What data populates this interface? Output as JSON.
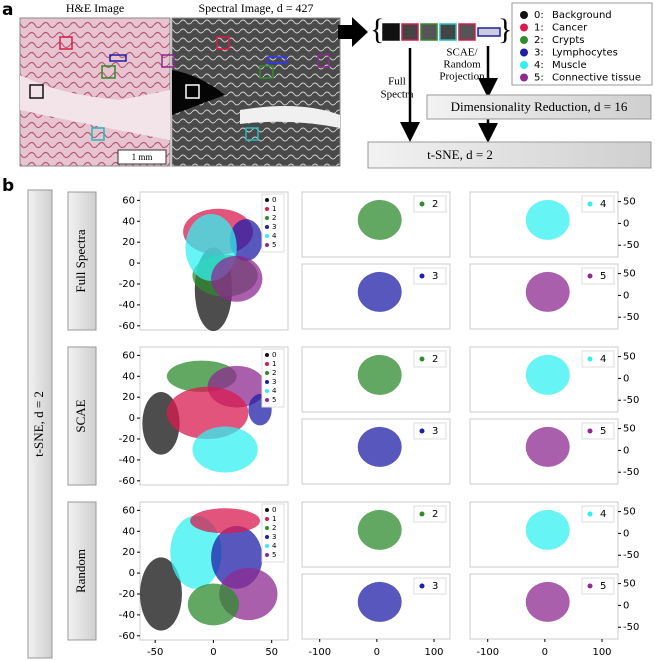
{
  "panel_a": {
    "label": "a",
    "he_title": "H&E Image",
    "spectral_title": "Spectral Image, d = 427",
    "scale_bar": "1 mm",
    "legend": [
      {
        "key": "0:",
        "label": "Background",
        "color": "#111111"
      },
      {
        "key": "1:",
        "label": "Cancer",
        "color": "#d81b4f"
      },
      {
        "key": "2:",
        "label": "Crypts",
        "color": "#2e8b2e"
      },
      {
        "key": "3:",
        "label": "Lymphocytes",
        "color": "#1f1fa8"
      },
      {
        "key": "4:",
        "label": "Muscle",
        "color": "#33f0f0"
      },
      {
        "key": "5:",
        "label": "Connective tissue",
        "color": "#8e2a92"
      }
    ],
    "scae_label": [
      "SCAE/",
      "Random",
      "Projection"
    ],
    "full_spectra_label": [
      "Full",
      "Spectra"
    ],
    "dim_reduction": "Dimensionality Reduction, d = 16",
    "tsne": "t-SNE, d = 2"
  },
  "panel_b": {
    "label": "b",
    "side_label": "t-SNE, d = 2",
    "overview_xlim": [
      -63,
      64
    ],
    "overview_ylim": [
      -64,
      68
    ],
    "overview_xticks": [
      -50,
      0,
      50
    ],
    "overview_yticks": [
      60,
      40,
      20,
      0,
      -20,
      -40,
      -60
    ],
    "overview_legend": [
      "0",
      "1",
      "2",
      "3",
      "4",
      "5"
    ],
    "class_xlim": [
      -131,
      128
    ],
    "class_ylim": [
      -77,
      72
    ],
    "class_xticks": [
      -100,
      0,
      100
    ],
    "class_yticks": [
      50,
      0,
      -50
    ],
    "class_legend": [
      "2",
      "4",
      "3",
      "5"
    ],
    "rows": [
      {
        "label": "Full Spectra"
      },
      {
        "label": "SCAE"
      },
      {
        "label": "Random"
      }
    ]
  }
}
